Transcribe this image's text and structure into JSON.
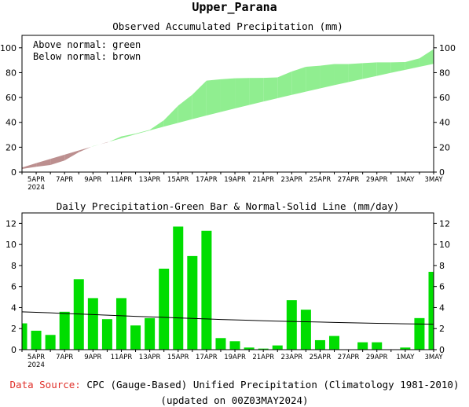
{
  "title": "Upper_Parana",
  "top_chart": {
    "title": "Observed Accumulated Precipitation (mm)",
    "legend_lines": [
      "Above normal: green",
      "Below normal: brown"
    ]
  },
  "bottom_chart": {
    "title": "Daily Precipitation-Green Bar & Normal-Solid Line (mm/day)"
  },
  "footer": {
    "source_label": "Data Source:",
    "source_text": "CPC (Gauge-Based) Unified Precipitation (Climatology 1981-2010)",
    "updated": "(updated on 00Z03MAY2024)"
  },
  "colors": {
    "above": "#90ee90",
    "below": "#bc8f8f",
    "bar": "#00dd00",
    "line": "#000000",
    "source_label": "#e0302a"
  },
  "chart_data": [
    {
      "type": "area",
      "title": "Observed Accumulated Precipitation (mm)",
      "x": [
        "4APR",
        "5APR",
        "6APR",
        "7APR",
        "8APR",
        "9APR",
        "10APR",
        "11APR",
        "12APR",
        "13APR",
        "14APR",
        "15APR",
        "16APR",
        "17APR",
        "18APR",
        "19APR",
        "20APR",
        "21APR",
        "22APR",
        "23APR",
        "24APR",
        "25APR",
        "26APR",
        "27APR",
        "28APR",
        "29APR",
        "30APR",
        "1MAY",
        "2MAY",
        "3MAY"
      ],
      "x_tick_labels": [
        "5APR",
        "7APR",
        "9APR",
        "11APR",
        "13APR",
        "15APR",
        "17APR",
        "19APR",
        "21APR",
        "23APR",
        "25APR",
        "27APR",
        "29APR",
        "1MAY",
        "3MAY"
      ],
      "x_year_label": "2024",
      "series": [
        {
          "name": "Observed",
          "values": [
            2.5,
            4.3,
            5.7,
            9.3,
            16.0,
            20.9,
            23.8,
            28.7,
            31.0,
            34.0,
            41.7,
            53.4,
            62.3,
            73.6,
            74.7,
            75.5,
            75.7,
            75.8,
            76.2,
            80.9,
            84.7,
            85.6,
            86.9,
            86.9,
            87.6,
            88.3,
            88.3,
            88.5,
            91.5,
            98.9
          ]
        },
        {
          "name": "Normal",
          "values": [
            3.6,
            7.2,
            10.6,
            14.0,
            17.4,
            20.7,
            24.0,
            27.2,
            30.4,
            33.5,
            36.6,
            39.6,
            42.6,
            45.5,
            48.4,
            51.2,
            54.0,
            56.7,
            59.4,
            62.1,
            64.7,
            67.3,
            69.9,
            72.4,
            74.9,
            77.4,
            79.9,
            82.3,
            84.7,
            87.1
          ]
        }
      ],
      "ylim": [
        0,
        110
      ],
      "yticks": [
        0,
        20,
        40,
        60,
        80,
        100
      ],
      "above_normal_color": "green",
      "below_normal_color": "brown"
    },
    {
      "type": "bar",
      "title": "Daily Precipitation-Green Bar & Normal-Solid Line (mm/day)",
      "x": [
        "4APR",
        "5APR",
        "6APR",
        "7APR",
        "8APR",
        "9APR",
        "10APR",
        "11APR",
        "12APR",
        "13APR",
        "14APR",
        "15APR",
        "16APR",
        "17APR",
        "18APR",
        "19APR",
        "20APR",
        "21APR",
        "22APR",
        "23APR",
        "24APR",
        "25APR",
        "26APR",
        "27APR",
        "28APR",
        "29APR",
        "30APR",
        "1MAY",
        "2MAY",
        "3MAY"
      ],
      "x_tick_labels": [
        "5APR",
        "7APR",
        "9APR",
        "11APR",
        "13APR",
        "15APR",
        "17APR",
        "19APR",
        "21APR",
        "23APR",
        "25APR",
        "27APR",
        "29APR",
        "1MAY",
        "3MAY"
      ],
      "x_year_label": "2024",
      "series": [
        {
          "name": "Daily Precipitation",
          "values": [
            2.5,
            1.8,
            1.4,
            3.6,
            6.7,
            4.9,
            2.9,
            4.9,
            2.3,
            3.0,
            7.7,
            11.7,
            8.9,
            11.3,
            1.1,
            0.8,
            0.2,
            0.1,
            0.4,
            4.7,
            3.8,
            0.9,
            1.3,
            0.0,
            0.7,
            0.7,
            0.0,
            0.2,
            3.0,
            7.4
          ]
        },
        {
          "name": "Normal",
          "values": [
            3.6,
            3.55,
            3.5,
            3.44,
            3.39,
            3.33,
            3.28,
            3.22,
            3.17,
            3.12,
            3.07,
            3.02,
            2.97,
            2.92,
            2.87,
            2.83,
            2.79,
            2.75,
            2.71,
            2.68,
            2.65,
            2.62,
            2.59,
            2.56,
            2.53,
            2.5,
            2.48,
            2.46,
            2.44,
            2.42
          ]
        }
      ],
      "ylim": [
        0,
        13
      ],
      "yticks": [
        0,
        2,
        4,
        6,
        8,
        10,
        12
      ]
    }
  ]
}
